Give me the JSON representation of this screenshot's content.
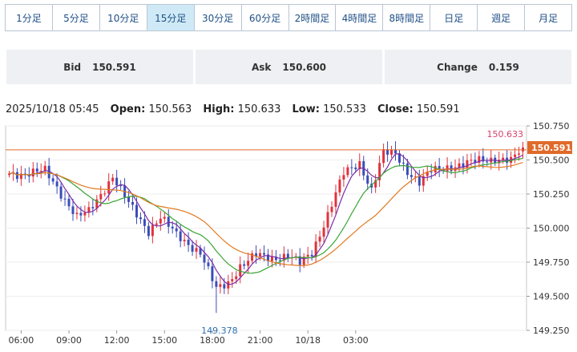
{
  "tabs": [
    {
      "label": "1分足"
    },
    {
      "label": "5分足"
    },
    {
      "label": "10分足"
    },
    {
      "label": "15分足",
      "active": true
    },
    {
      "label": "30分足"
    },
    {
      "label": "60分足"
    },
    {
      "label": "2時間足"
    },
    {
      "label": "4時間足"
    },
    {
      "label": "8時間足"
    },
    {
      "label": "日足"
    },
    {
      "label": "週足"
    },
    {
      "label": "月足"
    }
  ],
  "quote": {
    "bid_label": "Bid",
    "bid": "150.591",
    "ask_label": "Ask",
    "ask": "150.600",
    "change_label": "Change",
    "change": "0.159"
  },
  "ohlc": {
    "datetime": "2025/10/18 05:45",
    "open_label": "Open:",
    "open": "150.563",
    "high_label": "High:",
    "high": "150.633",
    "low_label": "Low:",
    "low": "150.533",
    "close_label": "Close:",
    "close": "150.591"
  },
  "chart_data": {
    "type": "candlestick",
    "ylim": [
      149.25,
      150.75
    ],
    "y_ticks": [
      "150.750",
      "150.500",
      "150.250",
      "150.000",
      "149.750",
      "149.500",
      "149.250"
    ],
    "x_ticks": [
      "06:00",
      "09:00",
      "12:00",
      "15:00",
      "18:00",
      "21:00",
      "10/18",
      "03:00"
    ],
    "high_marker": {
      "label": "150.633",
      "value": 150.633
    },
    "low_marker": {
      "label": "149.378",
      "value": 149.378
    },
    "last_price": {
      "label": "150.591",
      "value": 150.591
    },
    "colors": {
      "up": "#e0323c",
      "down": "#3b4db8",
      "ma_short": "#7a2ea6",
      "ma_mid": "#3aa535",
      "ma_long": "#e07a20",
      "last": "#e06a2a",
      "high_text": "#d9406a",
      "low_text": "#2e6fae"
    },
    "anchors": [
      {
        "i": 0,
        "p": 150.4
      },
      {
        "i": 4,
        "p": 150.4
      },
      {
        "i": 9,
        "p": 150.42
      },
      {
        "i": 12,
        "p": 150.3
      },
      {
        "i": 17,
        "p": 150.08
      },
      {
        "i": 20,
        "p": 150.12
      },
      {
        "i": 26,
        "p": 150.38
      },
      {
        "i": 30,
        "p": 150.18
      },
      {
        "i": 35,
        "p": 149.98
      },
      {
        "i": 38,
        "p": 150.08
      },
      {
        "i": 42,
        "p": 149.95
      },
      {
        "i": 48,
        "p": 149.82
      },
      {
        "i": 52,
        "p": 149.55
      },
      {
        "i": 55,
        "p": 149.6
      },
      {
        "i": 58,
        "p": 149.72
      },
      {
        "i": 62,
        "p": 149.8
      },
      {
        "i": 66,
        "p": 149.78
      },
      {
        "i": 70,
        "p": 149.8
      },
      {
        "i": 73,
        "p": 149.74
      },
      {
        "i": 76,
        "p": 149.82
      },
      {
        "i": 80,
        "p": 150.1
      },
      {
        "i": 84,
        "p": 150.4
      },
      {
        "i": 88,
        "p": 150.48
      },
      {
        "i": 91,
        "p": 150.28
      },
      {
        "i": 94,
        "p": 150.55
      },
      {
        "i": 97,
        "p": 150.55
      },
      {
        "i": 100,
        "p": 150.42
      },
      {
        "i": 103,
        "p": 150.33
      },
      {
        "i": 106,
        "p": 150.42
      },
      {
        "i": 110,
        "p": 150.45
      },
      {
        "i": 114,
        "p": 150.46
      },
      {
        "i": 118,
        "p": 150.5
      },
      {
        "i": 122,
        "p": 150.51
      },
      {
        "i": 126,
        "p": 150.49
      },
      {
        "i": 129,
        "p": 150.59
      }
    ]
  }
}
